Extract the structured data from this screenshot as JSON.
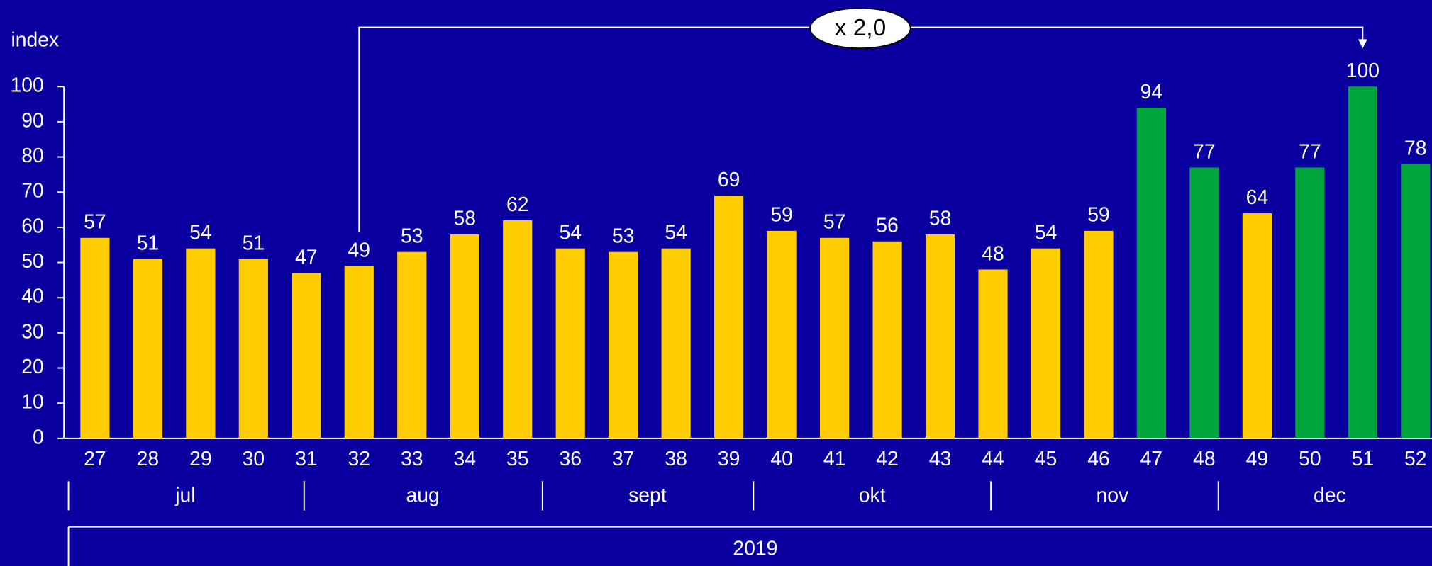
{
  "chart_data": {
    "type": "bar",
    "y_label": "index",
    "categories": [
      "27",
      "28",
      "29",
      "30",
      "31",
      "32",
      "33",
      "34",
      "35",
      "36",
      "37",
      "38",
      "39",
      "40",
      "41",
      "42",
      "43",
      "44",
      "45",
      "46",
      "47",
      "48",
      "49",
      "50",
      "51",
      "52"
    ],
    "values": [
      57,
      51,
      54,
      51,
      47,
      49,
      53,
      58,
      62,
      54,
      53,
      54,
      69,
      59,
      57,
      56,
      58,
      48,
      54,
      59,
      94,
      77,
      64,
      77,
      100,
      78
    ],
    "colors": [
      "#ffcc00",
      "#ffcc00",
      "#ffcc00",
      "#ffcc00",
      "#ffcc00",
      "#ffcc00",
      "#ffcc00",
      "#ffcc00",
      "#ffcc00",
      "#ffcc00",
      "#ffcc00",
      "#ffcc00",
      "#ffcc00",
      "#ffcc00",
      "#ffcc00",
      "#ffcc00",
      "#ffcc00",
      "#ffcc00",
      "#ffcc00",
      "#ffcc00",
      "#00a63c",
      "#00a63c",
      "#ffcc00",
      "#00a63c",
      "#00a63c",
      "#00a63c"
    ],
    "months": [
      "jul",
      "aug",
      "sept",
      "okt",
      "nov",
      "dec"
    ],
    "year": "2019",
    "annotation": "x 2,0",
    "ylim": [
      0,
      100
    ],
    "yticks": [
      0,
      10,
      20,
      30,
      40,
      50,
      60,
      70,
      80,
      90,
      100
    ]
  }
}
